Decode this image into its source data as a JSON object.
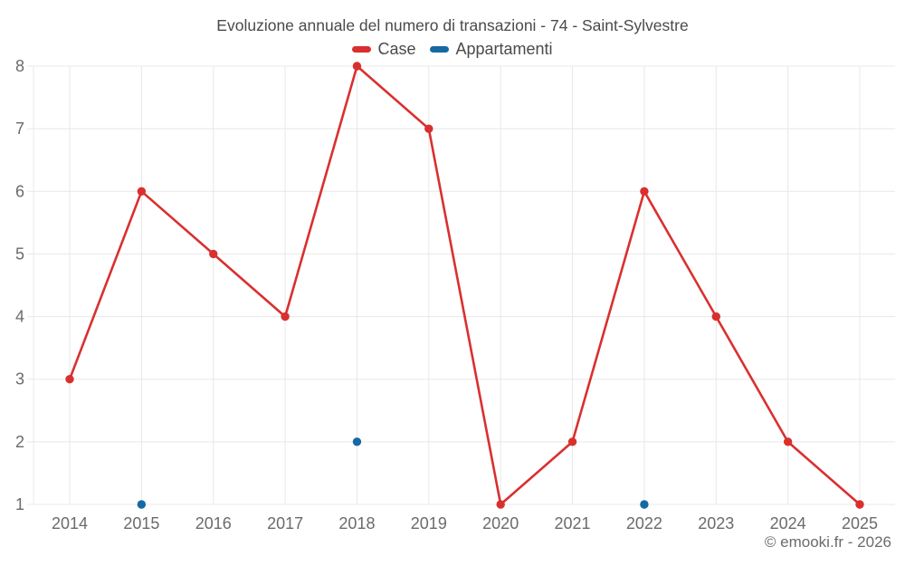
{
  "page": {
    "title": "Evoluzione annuale del numero di transazioni - 74 - Saint-Sylvestre",
    "watermark": "© emooki.fr - 2026"
  },
  "chart_data": {
    "type": "line",
    "title": "Evoluzione annuale del numero di transazioni - 74 - Saint-Sylvestre",
    "categories": [
      "2014",
      "2015",
      "2016",
      "2017",
      "2018",
      "2019",
      "2020",
      "2021",
      "2022",
      "2023",
      "2024",
      "2025"
    ],
    "series": [
      {
        "name": "Case",
        "color": "#d9302f",
        "draw_line": true,
        "values": [
          3,
          6,
          5,
          4,
          8,
          7,
          1,
          2,
          6,
          4,
          2,
          1
        ]
      },
      {
        "name": "Appartamenti",
        "color": "#1669a2",
        "draw_line": false,
        "values": [
          null,
          1,
          null,
          null,
          2,
          null,
          null,
          null,
          1,
          null,
          null,
          null
        ]
      }
    ],
    "xlabel": "",
    "ylabel": "",
    "y_ticks": [
      1,
      2,
      3,
      4,
      5,
      6,
      7,
      8
    ],
    "ylim": [
      1,
      8
    ],
    "grid": true,
    "legend_position": "top",
    "grid_color": "#e8e8e8",
    "tick_label_color": "#6b6b6b"
  }
}
